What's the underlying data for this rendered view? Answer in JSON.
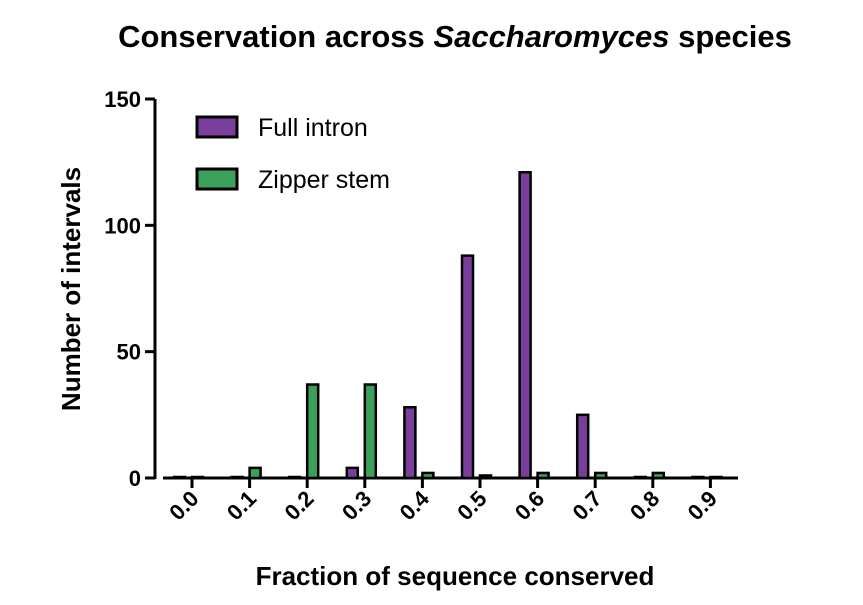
{
  "chart_data": {
    "type": "bar",
    "title_main": "Conservation across ",
    "title_italic": "Saccharomyces",
    "title_end": " species",
    "xlabel": "Fraction of sequence conserved",
    "ylabel": "Number of intervals",
    "ylim": [
      0,
      150
    ],
    "yticks": [
      0,
      50,
      100,
      150
    ],
    "categories": [
      "0.0",
      "0.1",
      "0.2",
      "0.3",
      "0.4",
      "0.5",
      "0.6",
      "0.7",
      "0.8",
      "0.9"
    ],
    "series": [
      {
        "name": "Full intron",
        "color": "#7a3e9d",
        "values": [
          0,
          0,
          0,
          4,
          28,
          88,
          121,
          25,
          0,
          0
        ]
      },
      {
        "name": "Zipper stem",
        "color": "#3aa05a",
        "values": [
          0,
          4,
          37,
          37,
          2,
          1,
          2,
          2,
          2,
          0
        ]
      }
    ],
    "legend_position": "top-left",
    "grid": false
  }
}
